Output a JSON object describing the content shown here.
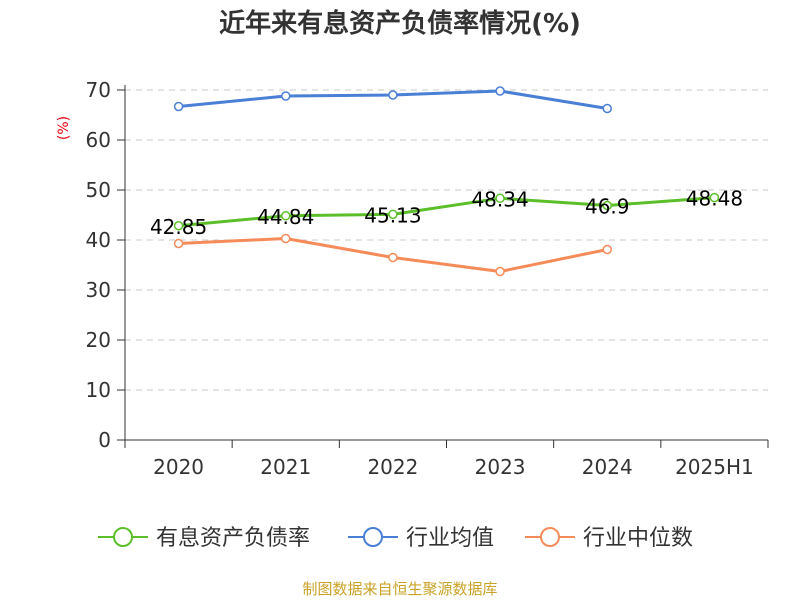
{
  "chart_data": {
    "type": "line",
    "title": "近年来有息资产负债率情况(%)",
    "ylabel": "(%)",
    "xlabel": "",
    "categories": [
      "2020",
      "2021",
      "2022",
      "2023",
      "2024",
      "2025H1"
    ],
    "ylim": [
      0,
      70
    ],
    "yticks": [
      0,
      10,
      20,
      30,
      40,
      50,
      60,
      70
    ],
    "grid": true,
    "legend_position": "bottom",
    "series": [
      {
        "name": "有息资产负债率",
        "color": "#5cbf2a",
        "values": [
          42.85,
          44.84,
          45.13,
          48.34,
          46.9,
          48.48
        ],
        "labels": [
          "42.85",
          "44.84",
          "45.13",
          "48.34",
          "46.9",
          "48.48"
        ]
      },
      {
        "name": "行业均值",
        "color": "#4a7fd6",
        "values": [
          66.7,
          68.8,
          69.0,
          69.8,
          66.3,
          null
        ]
      },
      {
        "name": "行业中位数",
        "color": "#f68b5a",
        "values": [
          39.3,
          40.3,
          36.5,
          33.7,
          38.1,
          null
        ]
      }
    ],
    "source": "制图数据来自恒生聚源数据库"
  }
}
